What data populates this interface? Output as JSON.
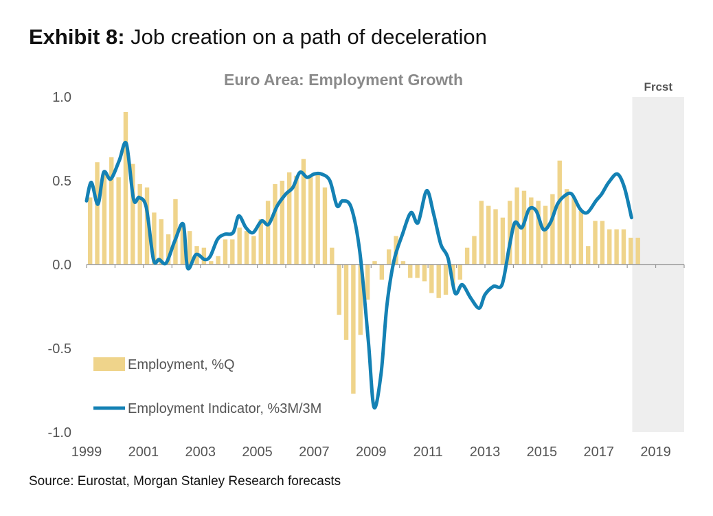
{
  "exhibit": {
    "label": "Exhibit 8:",
    "title": "Job creation on a path of deceleration"
  },
  "source": "Source: Eurostat, Morgan Stanley Research forecasts",
  "colors": {
    "bar": "#EFD48B",
    "line": "#1481B4",
    "shade": "#EEEEEE",
    "axis": "#999999",
    "text": "#555555",
    "chart_title": "#8A8A8A"
  },
  "chart_data": {
    "type": "bar+line",
    "title": "Euro Area: Employment Growth",
    "forecast_label": "Frcst",
    "forecast_start": 2018.25,
    "xlim": [
      1999,
      2020
    ],
    "ylim": [
      -1.0,
      1.0
    ],
    "y_ticks": [
      1.0,
      0.5,
      0.0,
      -0.5,
      -1.0
    ],
    "y_tick_labels": [
      "1.0",
      "0.5",
      "0.0",
      "-0.5",
      "-1.0"
    ],
    "x_ticks": [
      1999,
      2001,
      2003,
      2005,
      2007,
      2009,
      2011,
      2013,
      2015,
      2017,
      2019
    ],
    "legend": [
      "Employment, %Q",
      "Employment Indicator, %3M/3M"
    ],
    "bars": {
      "name": "Employment, %Q",
      "start": 1999.0,
      "step": 0.25,
      "values": [
        0.4,
        0.61,
        0.55,
        0.64,
        0.52,
        0.91,
        0.6,
        0.48,
        0.46,
        0.31,
        0.27,
        0.18,
        0.39,
        0.23,
        0.2,
        0.11,
        0.1,
        0.02,
        0.05,
        0.15,
        0.15,
        0.22,
        0.2,
        0.17,
        0.27,
        0.38,
        0.48,
        0.5,
        0.55,
        0.53,
        0.63,
        0.52,
        0.54,
        0.46,
        0.1,
        -0.3,
        -0.45,
        -0.77,
        -0.42,
        -0.21,
        0.02,
        -0.09,
        0.09,
        0.17,
        0.02,
        -0.08,
        -0.08,
        -0.1,
        -0.17,
        -0.2,
        -0.18,
        -0.12,
        -0.09,
        0.1,
        0.17,
        0.38,
        0.35,
        0.33,
        0.28,
        0.38,
        0.46,
        0.44,
        0.4,
        0.38,
        0.35,
        0.42,
        0.62,
        0.45,
        0.4,
        0.32,
        0.11,
        0.26,
        0.26,
        0.21,
        0.21,
        0.21,
        0.16,
        0.16
      ]
    },
    "line": {
      "name": "Employment Indicator, %3M/3M",
      "x": [
        1999.0,
        1999.17,
        1999.4,
        1999.6,
        1999.85,
        2000.15,
        2000.4,
        2000.65,
        2000.85,
        2001.1,
        2001.35,
        2001.55,
        2001.8,
        2002.1,
        2002.4,
        2002.55,
        2002.85,
        2003.15,
        2003.35,
        2003.6,
        2003.85,
        2004.15,
        2004.35,
        2004.6,
        2004.85,
        2005.15,
        2005.4,
        2005.7,
        2006.0,
        2006.25,
        2006.5,
        2006.75,
        2007.0,
        2007.25,
        2007.55,
        2007.8,
        2008.0,
        2008.3,
        2008.6,
        2008.9,
        2009.1,
        2009.35,
        2009.55,
        2009.8,
        2010.1,
        2010.4,
        2010.65,
        2010.95,
        2011.2,
        2011.45,
        2011.7,
        2011.95,
        2012.2,
        2012.5,
        2012.8,
        2013.0,
        2013.3,
        2013.6,
        2013.85,
        2014.05,
        2014.3,
        2014.55,
        2014.8,
        2015.05,
        2015.3,
        2015.55,
        2015.8,
        2016.05,
        2016.35,
        2016.6,
        2016.9,
        2017.1,
        2017.35,
        2017.65,
        2017.9,
        2018.15
      ],
      "y": [
        0.38,
        0.49,
        0.36,
        0.55,
        0.51,
        0.62,
        0.72,
        0.39,
        0.4,
        0.34,
        0.03,
        0.03,
        0.01,
        0.14,
        0.24,
        -0.02,
        0.06,
        0.03,
        0.05,
        0.15,
        0.18,
        0.19,
        0.29,
        0.22,
        0.19,
        0.26,
        0.24,
        0.35,
        0.42,
        0.46,
        0.55,
        0.52,
        0.54,
        0.54,
        0.5,
        0.35,
        0.38,
        0.34,
        0.08,
        -0.45,
        -0.85,
        -0.65,
        -0.25,
        0.02,
        0.18,
        0.31,
        0.25,
        0.44,
        0.3,
        0.12,
        0.04,
        -0.17,
        -0.12,
        -0.2,
        -0.26,
        -0.18,
        -0.13,
        -0.12,
        0.1,
        0.25,
        0.22,
        0.33,
        0.32,
        0.21,
        0.25,
        0.36,
        0.41,
        0.42,
        0.33,
        0.31,
        0.38,
        0.42,
        0.49,
        0.54,
        0.46,
        0.28
      ]
    }
  }
}
